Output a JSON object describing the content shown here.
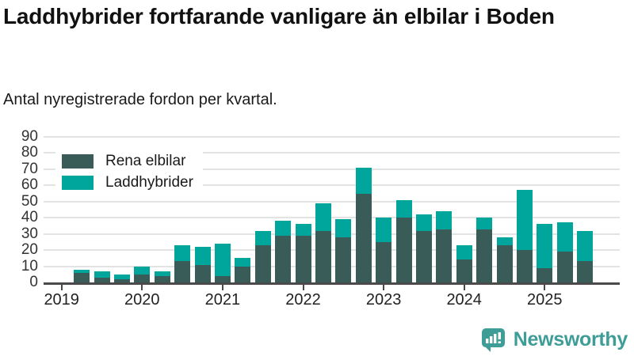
{
  "header": {
    "title": "Laddhybrider fortfarande vanligare än elbilar i Boden",
    "subtitle": "Antal nyregistrerade fordon per kvartal."
  },
  "chart_data": {
    "type": "bar",
    "stacked": true,
    "title": "Laddhybrider fortfarande vanligare än elbilar i Boden",
    "subtitle": "Antal nyregistrerade fordon per kvartal.",
    "categories": [
      "2019 Q2",
      "2019 Q3",
      "2019 Q4",
      "2020 Q1",
      "2020 Q2",
      "2020 Q3",
      "2020 Q4",
      "2021 Q1",
      "2021 Q2",
      "2021 Q3",
      "2021 Q4",
      "2022 Q1",
      "2022 Q2",
      "2022 Q3",
      "2022 Q4",
      "2023 Q1",
      "2023 Q2",
      "2023 Q3",
      "2023 Q4",
      "2024 Q1",
      "2024 Q2",
      "2024 Q3",
      "2024 Q4",
      "2025 Q1",
      "2025 Q2",
      "2025 Q3"
    ],
    "series": [
      {
        "name": "Rena elbilar",
        "color": "#395C59",
        "values": [
          6,
          3,
          2,
          5,
          4,
          13,
          11,
          4,
          10,
          23,
          29,
          29,
          32,
          28,
          55,
          25,
          40,
          32,
          33,
          14,
          33,
          23,
          20,
          9,
          19,
          13
        ]
      },
      {
        "name": "Laddhybrider",
        "color": "#00A69C",
        "values": [
          2,
          4,
          3,
          5,
          3,
          10,
          11,
          20,
          5,
          9,
          9,
          7,
          17,
          11,
          16,
          15,
          11,
          10,
          11,
          9,
          7,
          5,
          37,
          27,
          18,
          19
        ]
      }
    ],
    "x_tick_labels": [
      "2019",
      "2020",
      "2021",
      "2022",
      "2023",
      "2024",
      "2025"
    ],
    "y_ticks": [
      0,
      10,
      20,
      30,
      40,
      50,
      60,
      70,
      80,
      90
    ],
    "ylim": [
      0,
      90
    ],
    "grid": "horizontal",
    "legend_position": "top-left",
    "axis_color": "#4a4a4a",
    "grid_color": "#e3e3e3"
  },
  "footer": {
    "brand": "Newsworthy",
    "brand_color": "#3E9D97",
    "logo_icon": "bar-chart-speech-bubble-icon"
  }
}
